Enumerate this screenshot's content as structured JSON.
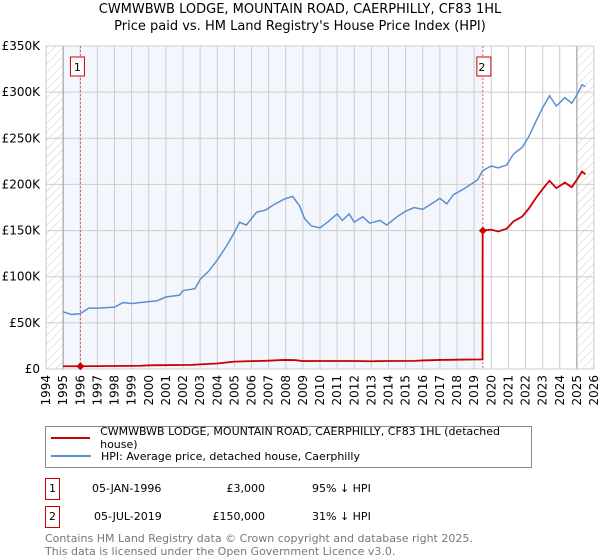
{
  "chart_data": {
    "type": "line",
    "title": "CWMWBWB LODGE, MOUNTAIN ROAD, CAERPHILLY, CF83 1HL",
    "subtitle": "Price paid vs. HM Land Registry's House Price Index (HPI)",
    "xlabel": "",
    "ylabel": "",
    "xlim": [
      1994,
      2026
    ],
    "ylim": [
      0,
      350000
    ],
    "x_ticks": [
      "1994",
      "1995",
      "1996",
      "1997",
      "1998",
      "1999",
      "2000",
      "2001",
      "2002",
      "2003",
      "2004",
      "2005",
      "2006",
      "2007",
      "2008",
      "2009",
      "2010",
      "2011",
      "2012",
      "2013",
      "2014",
      "2015",
      "2016",
      "2017",
      "2018",
      "2019",
      "2020",
      "2021",
      "2022",
      "2023",
      "2024",
      "2025",
      "2026"
    ],
    "y_ticks": [
      {
        "v": 0,
        "label": "£0"
      },
      {
        "v": 50000,
        "label": "£50K"
      },
      {
        "v": 100000,
        "label": "£100K"
      },
      {
        "v": 150000,
        "label": "£150K"
      },
      {
        "v": 200000,
        "label": "£200K"
      },
      {
        "v": 250000,
        "label": "£250K"
      },
      {
        "v": 300000,
        "label": "£300K"
      },
      {
        "v": 350000,
        "label": "£350K"
      }
    ],
    "grid": true,
    "series": [
      {
        "name": "CWMWBWB LODGE, MOUNTAIN ROAD, CAERPHILLY, CF83 1HL (detached house)",
        "color": "#cc0000",
        "points": [
          [
            1995,
            3000
          ],
          [
            1996,
            3000
          ],
          [
            1999.5,
            3500
          ],
          [
            2000,
            4000
          ],
          [
            2002.5,
            4500
          ],
          [
            2003,
            5000
          ],
          [
            2004,
            6000
          ],
          [
            2005,
            8000
          ],
          [
            2006,
            8500
          ],
          [
            2007,
            9000
          ],
          [
            2007.9,
            9800
          ],
          [
            2008.5,
            9700
          ],
          [
            2009,
            8600
          ],
          [
            2010,
            8700
          ],
          [
            2012,
            8700
          ],
          [
            2013,
            8400
          ],
          [
            2014,
            8700
          ],
          [
            2015.5,
            8800
          ],
          [
            2016,
            9300
          ],
          [
            2017,
            9800
          ],
          [
            2018.5,
            10200
          ],
          [
            2019.49,
            10400
          ],
          [
            2019.5,
            150000
          ],
          [
            2020,
            151000
          ],
          [
            2020.4,
            149000
          ],
          [
            2020.9,
            152000
          ],
          [
            2021.3,
            160000
          ],
          [
            2021.8,
            165000
          ],
          [
            2022.2,
            174000
          ],
          [
            2022.6,
            185000
          ],
          [
            2023,
            195000
          ],
          [
            2023.4,
            204000
          ],
          [
            2023.8,
            196000
          ],
          [
            2024.3,
            202000
          ],
          [
            2024.7,
            197000
          ],
          [
            2025,
            205000
          ],
          [
            2025.3,
            214000
          ],
          [
            2025.5,
            211000
          ]
        ]
      },
      {
        "name": "HPI: Average price, detached house, Caerphilly",
        "color": "#5b8fd0",
        "points": [
          [
            1995,
            62000
          ],
          [
            1995.5,
            59000
          ],
          [
            1996,
            60000
          ],
          [
            1996.5,
            66000
          ],
          [
            1997,
            66000
          ],
          [
            1998,
            67000
          ],
          [
            1998.5,
            72000
          ],
          [
            1999,
            71000
          ],
          [
            2000,
            73000
          ],
          [
            2000.5,
            74000
          ],
          [
            2001,
            78000
          ],
          [
            2001.8,
            80000
          ],
          [
            2002,
            85000
          ],
          [
            2002.7,
            87000
          ],
          [
            2003,
            97000
          ],
          [
            2003.5,
            106000
          ],
          [
            2004,
            118000
          ],
          [
            2004.6,
            135000
          ],
          [
            2005,
            148000
          ],
          [
            2005.3,
            159000
          ],
          [
            2005.7,
            156000
          ],
          [
            2006.3,
            170000
          ],
          [
            2006.8,
            172000
          ],
          [
            2007.3,
            178000
          ],
          [
            2007.9,
            184000
          ],
          [
            2008.4,
            187000
          ],
          [
            2008.8,
            177000
          ],
          [
            2009.1,
            163000
          ],
          [
            2009.5,
            155000
          ],
          [
            2010,
            153000
          ],
          [
            2010.5,
            160000
          ],
          [
            2011,
            168000
          ],
          [
            2011.3,
            161000
          ],
          [
            2011.7,
            168000
          ],
          [
            2012,
            159000
          ],
          [
            2012.5,
            165000
          ],
          [
            2012.9,
            158000
          ],
          [
            2013.5,
            161000
          ],
          [
            2013.9,
            156000
          ],
          [
            2014.5,
            165000
          ],
          [
            2015,
            171000
          ],
          [
            2015.5,
            175000
          ],
          [
            2016,
            173000
          ],
          [
            2016.6,
            180000
          ],
          [
            2017,
            185000
          ],
          [
            2017.4,
            179000
          ],
          [
            2017.8,
            189000
          ],
          [
            2018.3,
            194000
          ],
          [
            2018.8,
            200000
          ],
          [
            2019.2,
            205000
          ],
          [
            2019.5,
            215000
          ],
          [
            2020,
            220000
          ],
          [
            2020.4,
            218000
          ],
          [
            2020.9,
            221000
          ],
          [
            2021.3,
            233000
          ],
          [
            2021.8,
            240000
          ],
          [
            2022.2,
            252000
          ],
          [
            2022.6,
            268000
          ],
          [
            2023,
            283000
          ],
          [
            2023.4,
            296000
          ],
          [
            2023.8,
            285000
          ],
          [
            2024.3,
            294000
          ],
          [
            2024.7,
            288000
          ],
          [
            2025,
            297000
          ],
          [
            2025.3,
            308000
          ],
          [
            2025.5,
            306000
          ]
        ]
      }
    ],
    "annotations": [
      {
        "label": "1",
        "x": 1996.01,
        "y": 3000
      },
      {
        "label": "2",
        "x": 2019.51,
        "y": 150000
      }
    ],
    "legend_placement": "below"
  },
  "title_line1": "CWMWBWB LODGE, MOUNTAIN ROAD, CAERPHILLY, CF83 1HL",
  "title_line2": "Price paid vs. HM Land Registry's House Price Index (HPI)",
  "legend": {
    "red": "CWMWBWB LODGE, MOUNTAIN ROAD, CAERPHILLY, CF83 1HL (detached house)",
    "blue": "HPI: Average price, detached house, Caerphilly"
  },
  "sales": [
    {
      "num": "1",
      "date": "05-JAN-1996",
      "price": "£3,000",
      "hpi": "95% ↓ HPI"
    },
    {
      "num": "2",
      "date": "05-JUL-2019",
      "price": "£150,000",
      "hpi": "31% ↓ HPI"
    }
  ],
  "footer1": "Contains HM Land Registry data © Crown copyright and database right 2025.",
  "footer2": "This data is licensed under the Open Government Licence v3.0."
}
